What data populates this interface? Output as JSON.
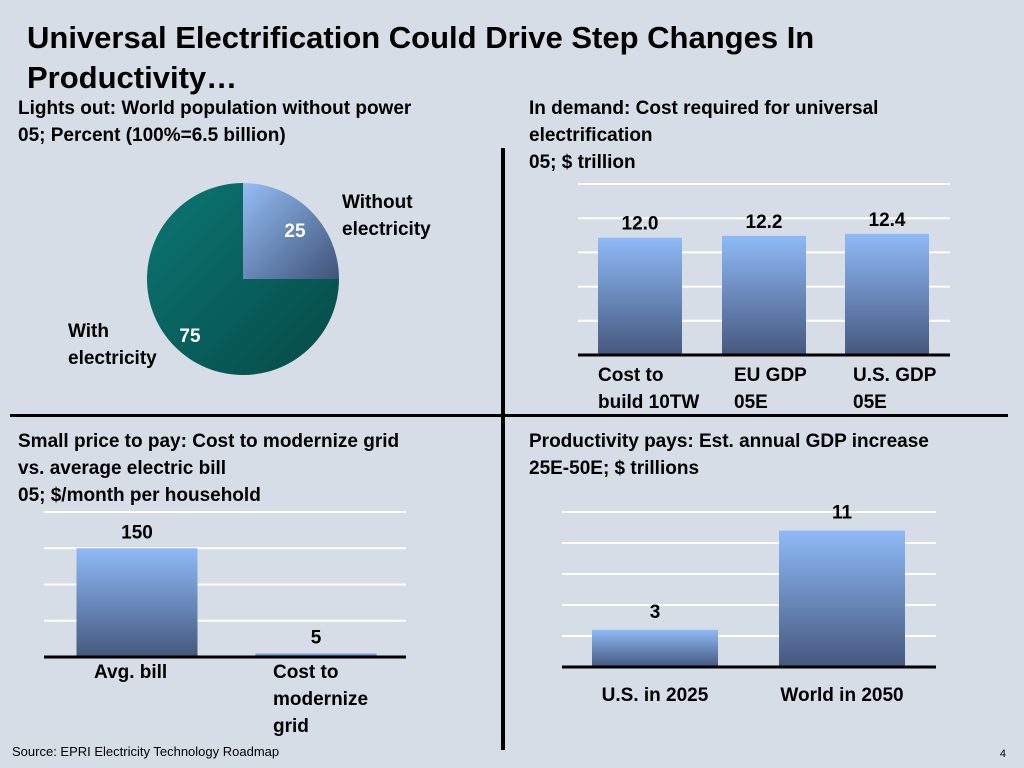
{
  "slide": {
    "title": "Universal Electrification Could Drive Step Changes In Productivity…",
    "source": "Source: EPRI Electricity Technology Roadmap",
    "page_number": "4"
  },
  "panels": {
    "pie": {
      "title_lines": [
        "Lights out: World population without power",
        "05; Percent (100%=6.5 billion)"
      ]
    },
    "demand": {
      "title_lines": [
        "In demand: Cost required for universal",
        "electrification",
        "05; $ trillion"
      ]
    },
    "price": {
      "title_lines": [
        "Small price to pay: Cost to modernize grid",
        "vs. average electric bill",
        "05; $/month per household"
      ]
    },
    "productivity": {
      "title_lines": [
        "Productivity pays: Est. annual GDP increase",
        "25E-50E; $ trillions"
      ]
    }
  },
  "colors": {
    "pie_with": "#0b7673",
    "pie_without_light": "#94bdf5",
    "bar_top": "#8fbaf7",
    "bar_bottom": "#45587e",
    "background": "#d6dde6"
  },
  "chart_data": [
    {
      "id": "pie",
      "type": "pie",
      "slices": [
        {
          "label_lines": [
            "Without",
            "electricity"
          ],
          "value": 25,
          "value_label": "25"
        },
        {
          "label_lines": [
            "With",
            "electricity"
          ],
          "value": 75,
          "value_label": "75"
        }
      ]
    },
    {
      "id": "demand",
      "type": "bar",
      "categories": [
        [
          "Cost to",
          "build 10TW"
        ],
        [
          "EU GDP",
          "05E"
        ],
        [
          "U.S. GDP",
          "05E"
        ]
      ],
      "values": [
        12.0,
        12.2,
        12.4
      ],
      "value_labels": [
        "12.0",
        "12.2",
        "12.4"
      ],
      "ylim": [
        0,
        17.5
      ],
      "gridlines": [
        0,
        3.5,
        7,
        10.5,
        14,
        17.5
      ]
    },
    {
      "id": "price",
      "type": "bar",
      "categories": [
        [
          "Avg. bill"
        ],
        [
          "Cost to",
          "modernize",
          "grid"
        ]
      ],
      "values": [
        150,
        5
      ],
      "value_labels": [
        "150",
        "5"
      ],
      "ylim": [
        0,
        200
      ],
      "gridlines": [
        0,
        50,
        100,
        150,
        200
      ]
    },
    {
      "id": "productivity",
      "type": "bar",
      "categories": [
        [
          "U.S. in 2025"
        ],
        [
          "World in 2050"
        ]
      ],
      "values": [
        3,
        11
      ],
      "value_labels": [
        "3",
        "11"
      ],
      "ylim": [
        0,
        12.5
      ],
      "gridlines": [
        0,
        2.5,
        5,
        7.5,
        10,
        12.5
      ]
    }
  ]
}
